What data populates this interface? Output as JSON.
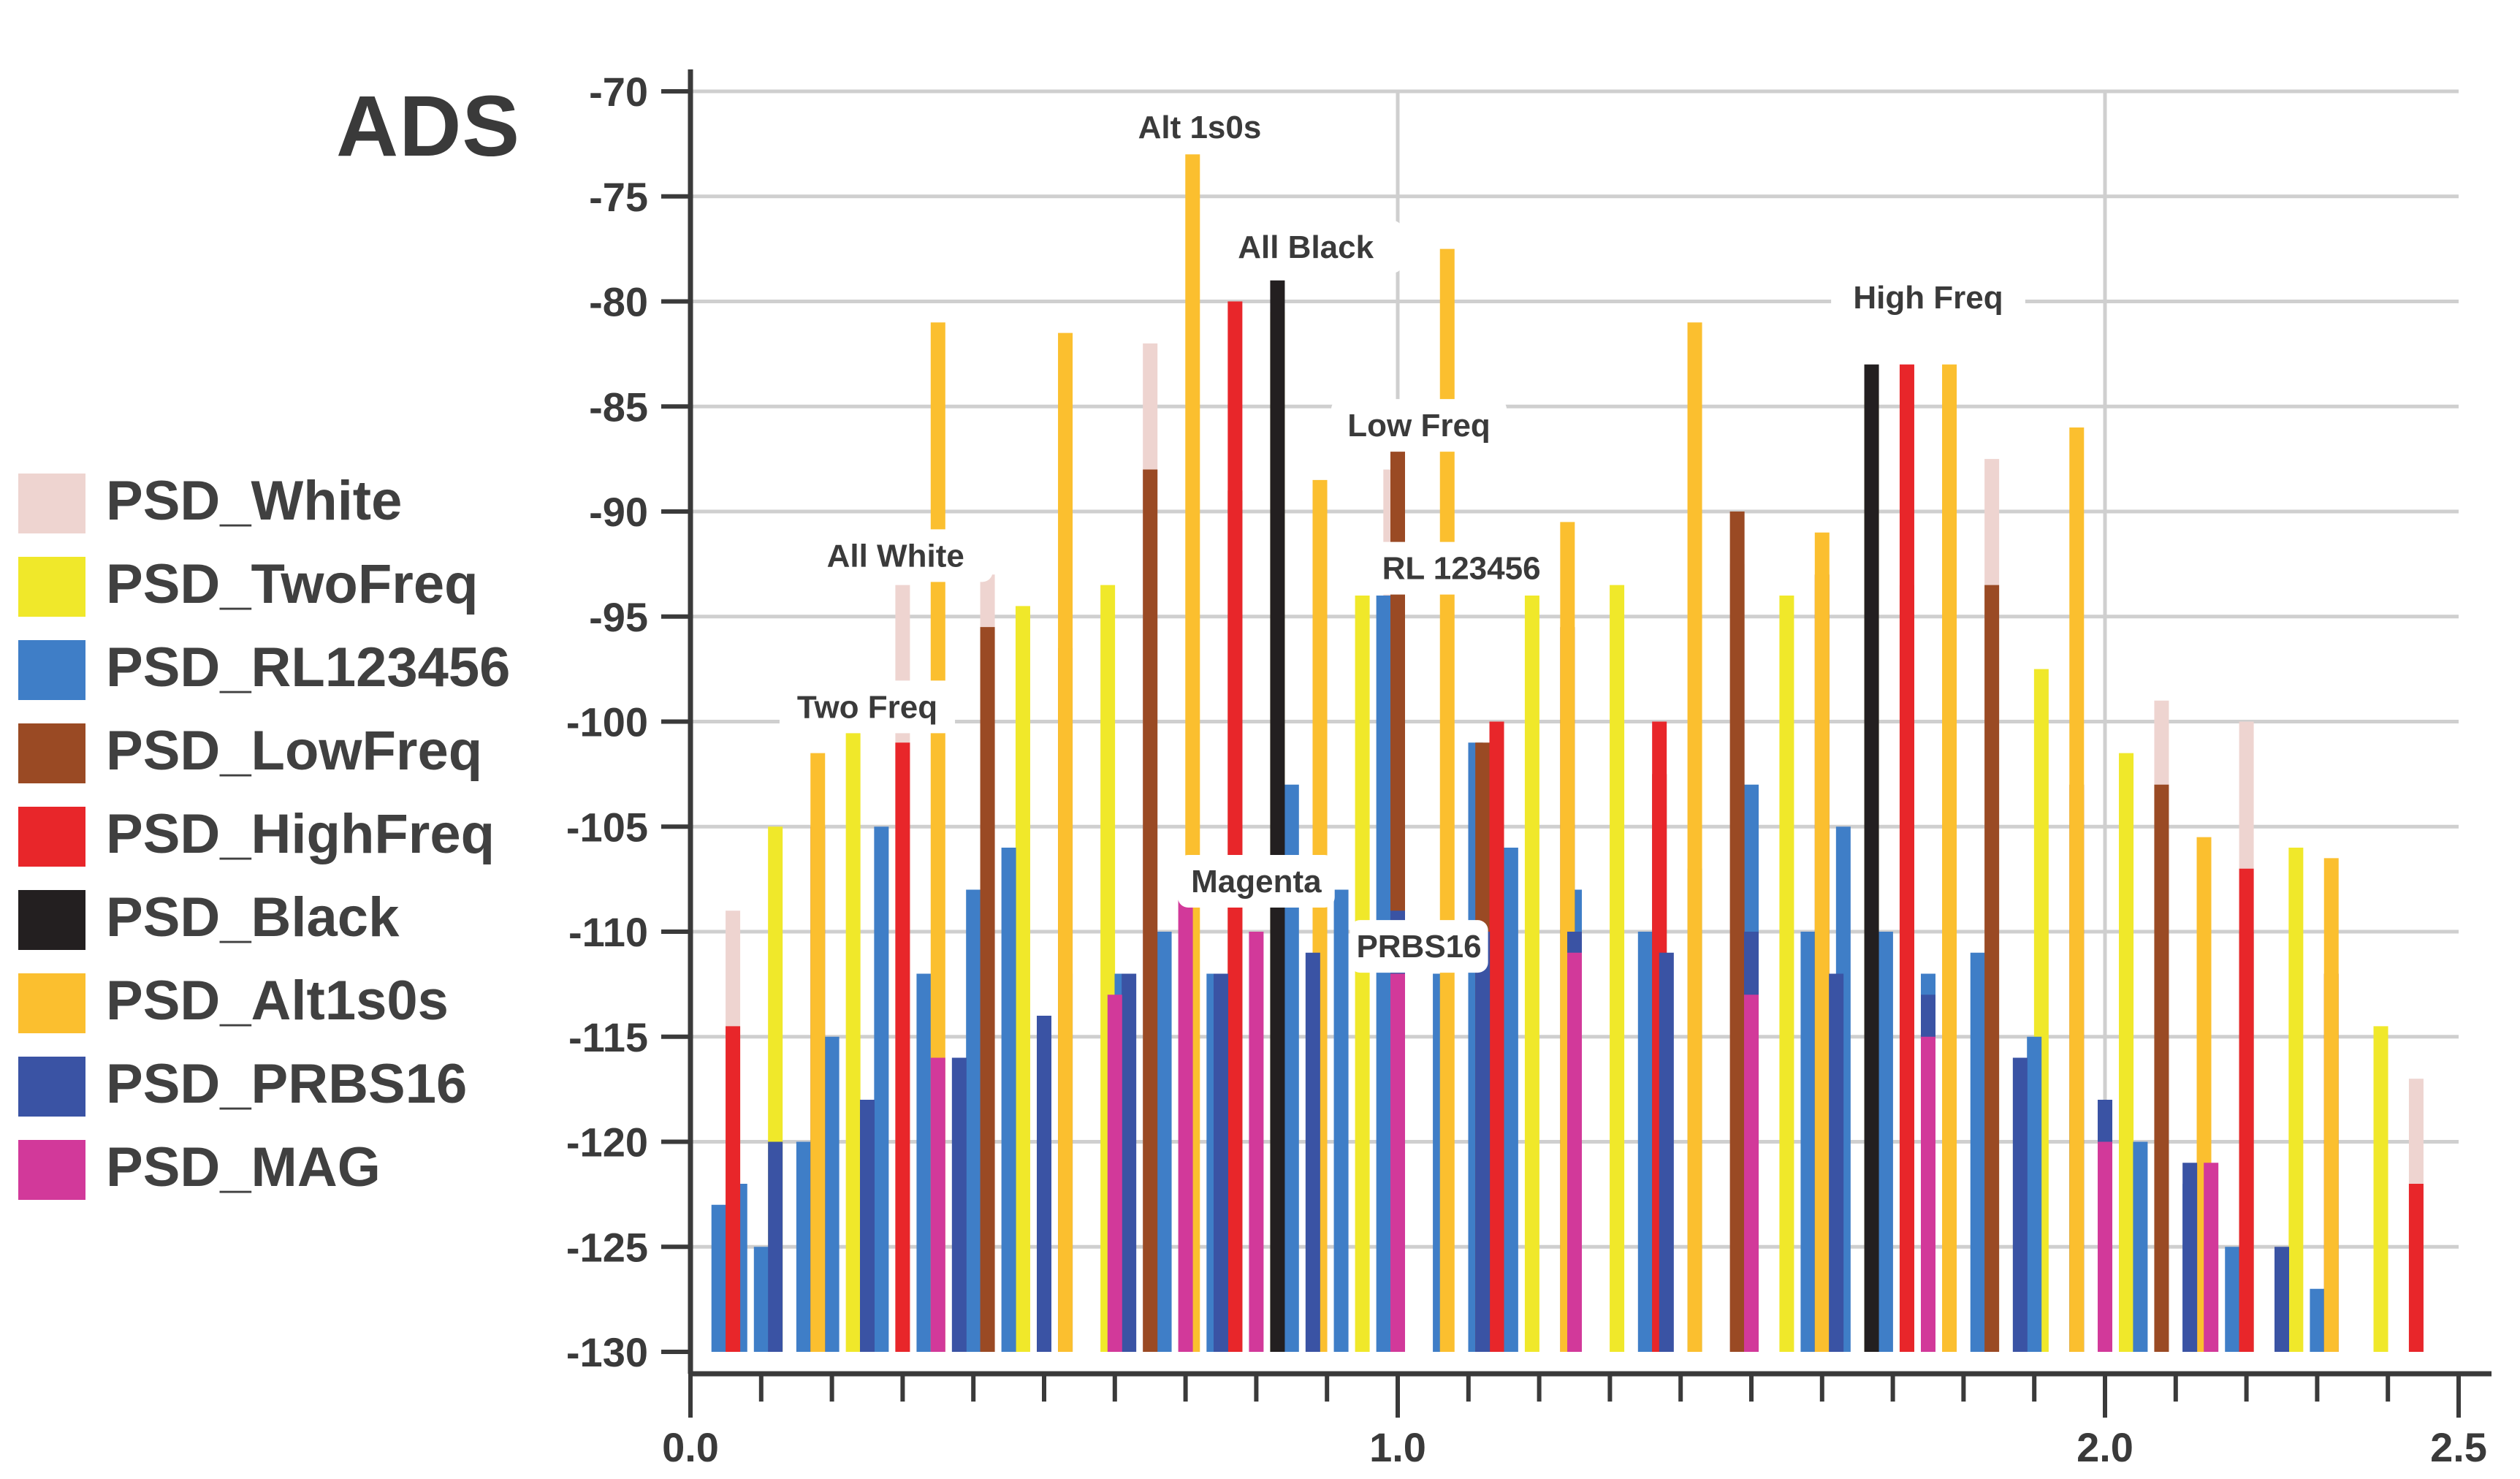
{
  "chart_data": {
    "type": "bar",
    "title": "ADS",
    "xlabel": "",
    "ylabel": "",
    "xlim": [
      0.0,
      2.5
    ],
    "ylim": [
      -130,
      -70
    ],
    "x_tick_labels": [
      "0.0",
      "1.0",
      "2.0",
      "2.5"
    ],
    "x_major_ticks": [
      0.0,
      1.0,
      2.0,
      2.5
    ],
    "y_ticks": [
      -70,
      -75,
      -80,
      -85,
      -90,
      -95,
      -100,
      -105,
      -110,
      -115,
      -120,
      -125,
      -130
    ],
    "grid": true,
    "legend_position": "left",
    "series": [
      {
        "name": "PSD_White",
        "color": "#eed4d0",
        "points": [
          [
            0.06,
            -109
          ],
          [
            0.3,
            -93.5
          ],
          [
            0.42,
            -93
          ],
          [
            0.65,
            -82
          ],
          [
            0.77,
            -95.5
          ],
          [
            0.99,
            -88
          ],
          [
            1.14,
            -105
          ],
          [
            1.37,
            -104
          ],
          [
            1.48,
            -92.5
          ],
          [
            1.72,
            -98.5
          ],
          [
            1.84,
            -87.5
          ],
          [
            2.08,
            -99
          ],
          [
            2.2,
            -100
          ],
          [
            2.44,
            -117
          ]
        ]
      },
      {
        "name": "PSD_TwoFreq",
        "color": "#f0e82a",
        "points": [
          [
            0.12,
            -105
          ],
          [
            0.23,
            -100.5
          ],
          [
            0.47,
            -94.5
          ],
          [
            0.59,
            -93.5
          ],
          [
            0.83,
            -80.5
          ],
          [
            0.95,
            -94
          ],
          [
            1.19,
            -94
          ],
          [
            1.31,
            -93.5
          ],
          [
            1.55,
            -94
          ],
          [
            1.67,
            -84.5
          ],
          [
            1.91,
            -97.5
          ],
          [
            2.03,
            -101.5
          ],
          [
            2.27,
            -106
          ],
          [
            2.39,
            -114.5
          ]
        ]
      },
      {
        "name": "PSD_RL123456",
        "color": "#3f7ec7",
        "points": [
          [
            0.04,
            -123
          ],
          [
            0.07,
            -122
          ],
          [
            0.1,
            -125
          ],
          [
            0.16,
            -120
          ],
          [
            0.2,
            -115
          ],
          [
            0.27,
            -105
          ],
          [
            0.33,
            -112
          ],
          [
            0.4,
            -108
          ],
          [
            0.45,
            -106
          ],
          [
            0.53,
            -112
          ],
          [
            0.61,
            -112
          ],
          [
            0.67,
            -110
          ],
          [
            0.74,
            -112
          ],
          [
            0.85,
            -103
          ],
          [
            0.92,
            -108
          ],
          [
            0.98,
            -94
          ],
          [
            1.06,
            -112
          ],
          [
            1.11,
            -101
          ],
          [
            1.16,
            -106
          ],
          [
            1.25,
            -108
          ],
          [
            1.35,
            -110
          ],
          [
            1.42,
            -107
          ],
          [
            1.5,
            -103
          ],
          [
            1.58,
            -110
          ],
          [
            1.63,
            -105
          ],
          [
            1.69,
            -110
          ],
          [
            1.75,
            -112
          ],
          [
            1.82,
            -111
          ],
          [
            1.9,
            -115
          ],
          [
            1.96,
            -118
          ],
          [
            2.05,
            -120
          ],
          [
            2.12,
            -122
          ],
          [
            2.18,
            -125
          ],
          [
            2.25,
            -126
          ],
          [
            2.3,
            -127
          ]
        ]
      },
      {
        "name": "PSD_LowFreq",
        "color": "#9a4a24",
        "points": [
          [
            0.18,
            -105
          ],
          [
            0.42,
            -95.5
          ],
          [
            0.53,
            -96.5
          ],
          [
            0.65,
            -88
          ],
          [
            0.77,
            -89
          ],
          [
            0.89,
            -89
          ],
          [
            1.0,
            -87
          ],
          [
            1.12,
            -101
          ],
          [
            1.24,
            -95.5
          ],
          [
            1.37,
            -102.5
          ],
          [
            1.48,
            -90
          ],
          [
            1.6,
            -93
          ],
          [
            1.72,
            -93.5
          ],
          [
            1.84,
            -93.5
          ],
          [
            1.96,
            -103
          ],
          [
            2.08,
            -103
          ],
          [
            2.2,
            -110
          ],
          [
            2.32,
            -112
          ]
        ]
      },
      {
        "name": "PSD_HighFreq",
        "color": "#e8262a",
        "points": [
          [
            0.06,
            -114.5
          ],
          [
            0.3,
            -101
          ],
          [
            0.77,
            -80
          ],
          [
            1.14,
            -100
          ],
          [
            1.37,
            -100
          ],
          [
            1.72,
            -83
          ],
          [
            2.2,
            -107
          ],
          [
            2.44,
            -122
          ]
        ]
      },
      {
        "name": "PSD_Black",
        "color": "#231f20",
        "points": [
          [
            0.83,
            -79
          ],
          [
            1.67,
            -83
          ]
        ]
      },
      {
        "name": "PSD_Alt1s0s",
        "color": "#fbbf2f",
        "points": [
          [
            0.18,
            -101.5
          ],
          [
            0.35,
            -81
          ],
          [
            0.53,
            -81.5
          ],
          [
            0.71,
            -73
          ],
          [
            0.89,
            -88.5
          ],
          [
            1.07,
            -77.5
          ],
          [
            1.24,
            -90.5
          ],
          [
            1.42,
            -81
          ],
          [
            1.6,
            -91
          ],
          [
            1.78,
            -83
          ],
          [
            1.96,
            -86
          ],
          [
            2.14,
            -105.5
          ],
          [
            2.32,
            -106.5
          ]
        ]
      },
      {
        "name": "PSD_PRBS16",
        "color": "#3a53a4",
        "points": [
          [
            0.12,
            -120
          ],
          [
            0.25,
            -118
          ],
          [
            0.38,
            -116
          ],
          [
            0.5,
            -114
          ],
          [
            0.62,
            -112
          ],
          [
            0.75,
            -112
          ],
          [
            0.88,
            -111
          ],
          [
            1.0,
            -109
          ],
          [
            1.12,
            -110
          ],
          [
            1.25,
            -110
          ],
          [
            1.38,
            -111
          ],
          [
            1.5,
            -110
          ],
          [
            1.62,
            -112
          ],
          [
            1.75,
            -113
          ],
          [
            1.88,
            -116
          ],
          [
            2.0,
            -118
          ],
          [
            2.12,
            -121
          ],
          [
            2.25,
            -125
          ]
        ]
      },
      {
        "name": "PSD_MAG",
        "color": "#d2399a",
        "points": [
          [
            0.35,
            -116
          ],
          [
            0.6,
            -113
          ],
          [
            0.7,
            -108
          ],
          [
            0.8,
            -110
          ],
          [
            1.0,
            -112
          ],
          [
            1.25,
            -111
          ],
          [
            1.5,
            -113
          ],
          [
            1.75,
            -115
          ],
          [
            2.0,
            -120
          ],
          [
            2.15,
            -121
          ]
        ]
      }
    ],
    "annotations": [
      {
        "text": "Alt 1s0s",
        "x": 0.72,
        "y": -71.7
      },
      {
        "text": "All Black",
        "x": 0.87,
        "y": -77.4
      },
      {
        "text": "High Freq",
        "x": 1.75,
        "y": -79.8
      },
      {
        "text": "Low Freq",
        "x": 1.03,
        "y": -85.9
      },
      {
        "text": "All White",
        "x": 0.29,
        "y": -92.1
      },
      {
        "text": "RL 123456",
        "x": 1.09,
        "y": -92.7
      },
      {
        "text": "Two Freq",
        "x": 0.25,
        "y": -99.3
      },
      {
        "text": "Magenta",
        "x": 0.8,
        "y": -107.6
      },
      {
        "text": "PRBS16",
        "x": 1.03,
        "y": -110.7
      }
    ]
  }
}
